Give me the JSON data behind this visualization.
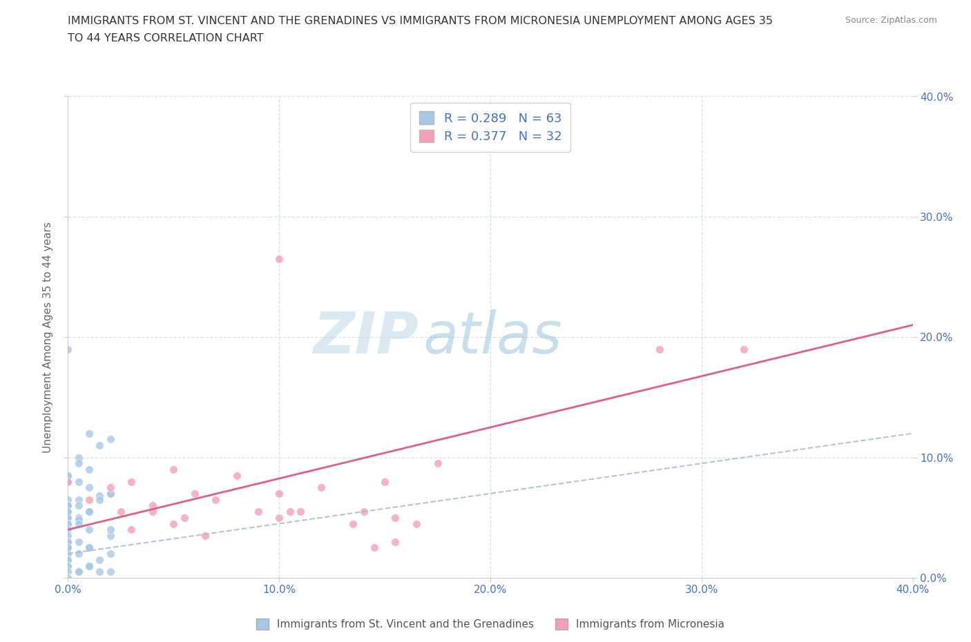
{
  "title_line1": "IMMIGRANTS FROM ST. VINCENT AND THE GRENADINES VS IMMIGRANTS FROM MICRONESIA UNEMPLOYMENT AMONG AGES 35",
  "title_line2": "TO 44 YEARS CORRELATION CHART",
  "source": "Source: ZipAtlas.com",
  "ylabel": "Unemployment Among Ages 35 to 44 years",
  "xmin": 0.0,
  "xmax": 0.4,
  "ymin": 0.0,
  "ymax": 0.4,
  "xticks": [
    0.0,
    0.1,
    0.2,
    0.3,
    0.4
  ],
  "yticks": [
    0.0,
    0.1,
    0.2,
    0.3,
    0.4
  ],
  "xtick_labels": [
    "0.0%",
    "10.0%",
    "20.0%",
    "30.0%",
    "40.0%"
  ],
  "ytick_labels_right": [
    "0.0%",
    "10.0%",
    "20.0%",
    "30.0%",
    "40.0%"
  ],
  "color_blue": "#a8c8e8",
  "color_pink": "#f4a0b8",
  "color_pink_line": "#e06080",
  "color_blue_line": "#a0b8d0",
  "r_blue": 0.289,
  "n_blue": 63,
  "r_pink": 0.377,
  "n_pink": 32,
  "legend_label_blue": "Immigrants from St. Vincent and the Grenadines",
  "legend_label_pink": "Immigrants from Micronesia",
  "watermark_left": "ZIP",
  "watermark_right": "atlas",
  "blue_line_x": [
    0.0,
    0.4
  ],
  "blue_line_y": [
    0.02,
    0.12
  ],
  "pink_line_x": [
    0.0,
    0.4
  ],
  "pink_line_y": [
    0.04,
    0.21
  ],
  "scatter_blue_x": [
    0.0,
    0.0,
    0.0,
    0.0,
    0.0,
    0.0,
    0.0,
    0.0,
    0.0,
    0.0,
    0.0,
    0.0,
    0.0,
    0.0,
    0.0,
    0.0,
    0.0,
    0.0,
    0.0,
    0.0,
    0.005,
    0.005,
    0.005,
    0.005,
    0.005,
    0.005,
    0.005,
    0.005,
    0.01,
    0.01,
    0.01,
    0.01,
    0.01,
    0.01,
    0.01,
    0.015,
    0.015,
    0.015,
    0.02,
    0.02,
    0.02,
    0.0,
    0.0,
    0.0,
    0.0,
    0.0,
    0.0,
    0.0,
    0.0,
    0.005,
    0.005,
    0.005,
    0.005,
    0.01,
    0.01,
    0.01,
    0.015,
    0.015,
    0.02,
    0.02,
    0.02,
    0.02,
    0.0
  ],
  "scatter_blue_y": [
    0.19,
    0.085,
    0.08,
    0.065,
    0.06,
    0.06,
    0.055,
    0.05,
    0.05,
    0.045,
    0.045,
    0.04,
    0.035,
    0.03,
    0.03,
    0.025,
    0.025,
    0.02,
    0.015,
    0.01,
    0.1,
    0.095,
    0.08,
    0.065,
    0.05,
    0.048,
    0.03,
    0.005,
    0.12,
    0.09,
    0.075,
    0.055,
    0.04,
    0.025,
    0.01,
    0.11,
    0.068,
    0.005,
    0.115,
    0.07,
    0.035,
    0.085,
    0.06,
    0.055,
    0.03,
    0.025,
    0.015,
    0.01,
    0.005,
    0.06,
    0.045,
    0.02,
    0.005,
    0.055,
    0.025,
    0.01,
    0.065,
    0.015,
    0.07,
    0.04,
    0.02,
    0.005,
    0.0
  ],
  "scatter_pink_x": [
    0.0,
    0.01,
    0.02,
    0.025,
    0.03,
    0.03,
    0.04,
    0.04,
    0.05,
    0.05,
    0.055,
    0.06,
    0.065,
    0.07,
    0.08,
    0.09,
    0.1,
    0.1,
    0.1,
    0.105,
    0.11,
    0.12,
    0.135,
    0.14,
    0.145,
    0.15,
    0.155,
    0.155,
    0.165,
    0.175,
    0.28,
    0.32
  ],
  "scatter_pink_y": [
    0.08,
    0.065,
    0.075,
    0.055,
    0.08,
    0.04,
    0.06,
    0.055,
    0.09,
    0.045,
    0.05,
    0.07,
    0.035,
    0.065,
    0.085,
    0.055,
    0.265,
    0.07,
    0.05,
    0.055,
    0.055,
    0.075,
    0.045,
    0.055,
    0.025,
    0.08,
    0.05,
    0.03,
    0.045,
    0.095,
    0.19,
    0.19
  ]
}
